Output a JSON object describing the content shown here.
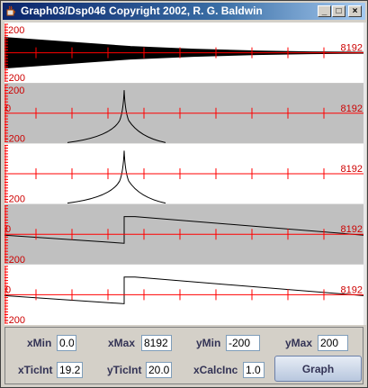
{
  "window": {
    "title": "Graph03/Dsp046 Copyright 2002, R. G. Baldwin",
    "minimize_glyph": "_",
    "maximize_glyph": "□",
    "close_glyph": "×"
  },
  "colors": {
    "axis": "#ff0000",
    "label": "#cc0000",
    "curve": "#000000",
    "band_gray": "#c0c0c0",
    "band_white": "#ffffff"
  },
  "plots": [
    {
      "y_top_label": "200",
      "y_bottom_label": "-200",
      "y_zero_label": "",
      "x_end_label": "8192",
      "shape": "envelope"
    },
    {
      "y_top_label": "200",
      "y_bottom_label": "-200",
      "y_zero_label": "0",
      "x_end_label": "8192",
      "shape": "spike"
    },
    {
      "y_top_label": "",
      "y_bottom_label": "-200",
      "y_zero_label": "",
      "x_end_label": "8192",
      "shape": "spike"
    },
    {
      "y_top_label": "",
      "y_bottom_label": "-200",
      "y_zero_label": "0",
      "x_end_label": "8192",
      "shape": "sawstep"
    },
    {
      "y_top_label": "",
      "y_bottom_label": "-200",
      "y_zero_label": "0",
      "x_end_label": "8192",
      "shape": "sawstep"
    }
  ],
  "controls": {
    "xmin_label": "xMin",
    "xmin_value": "0.0",
    "xmax_label": "xMax",
    "xmax_value": "8192",
    "ymin_label": "yMin",
    "ymin_value": "-200",
    "ymax_label": "yMax",
    "ymax_value": "200",
    "xticint_label": "xTicInt",
    "xticint_value": "19.2",
    "yticint_label": "yTicInt",
    "yticint_value": "20.0",
    "xcalcinc_label": "xCalcInc",
    "xcalcinc_value": "1.0",
    "graph_label": "Graph"
  }
}
